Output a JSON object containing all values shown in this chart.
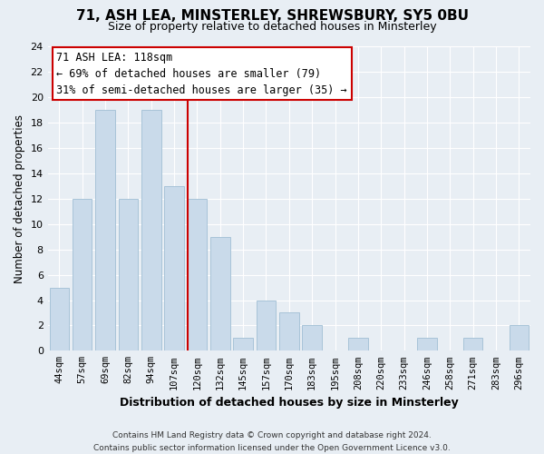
{
  "title": "71, ASH LEA, MINSTERLEY, SHREWSBURY, SY5 0BU",
  "subtitle": "Size of property relative to detached houses in Minsterley",
  "xlabel": "Distribution of detached houses by size in Minsterley",
  "ylabel": "Number of detached properties",
  "bin_labels": [
    "44sqm",
    "57sqm",
    "69sqm",
    "82sqm",
    "94sqm",
    "107sqm",
    "120sqm",
    "132sqm",
    "145sqm",
    "157sqm",
    "170sqm",
    "183sqm",
    "195sqm",
    "208sqm",
    "220sqm",
    "233sqm",
    "246sqm",
    "258sqm",
    "271sqm",
    "283sqm",
    "296sqm"
  ],
  "bar_heights": [
    5,
    12,
    19,
    12,
    19,
    13,
    12,
    9,
    1,
    4,
    3,
    2,
    0,
    1,
    0,
    0,
    1,
    0,
    1,
    0,
    2
  ],
  "bar_color": "#c9daea",
  "bar_edge_color": "#a8c4d8",
  "highlight_line_index": 6,
  "highlight_color": "#cc0000",
  "annotation_title": "71 ASH LEA: 118sqm",
  "annotation_line1": "← 69% of detached houses are smaller (79)",
  "annotation_line2": "31% of semi-detached houses are larger (35) →",
  "annotation_box_edge": "#cc0000",
  "ylim": [
    0,
    24
  ],
  "yticks": [
    0,
    2,
    4,
    6,
    8,
    10,
    12,
    14,
    16,
    18,
    20,
    22,
    24
  ],
  "footer_line1": "Contains HM Land Registry data © Crown copyright and database right 2024.",
  "footer_line2": "Contains public sector information licensed under the Open Government Licence v3.0.",
  "background_color": "#e8eef4",
  "plot_bg_color": "#e8eef4",
  "grid_color": "#ffffff",
  "title_fontsize": 11,
  "subtitle_fontsize": 9
}
